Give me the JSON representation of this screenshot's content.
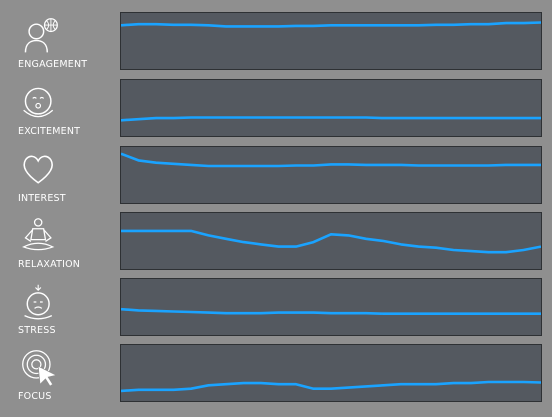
{
  "colors": {
    "background": "#8f8f8f",
    "chart_bg": "#545960",
    "line": "#1aa3ff",
    "icon": "#ffffff"
  },
  "metrics": [
    {
      "label": "ENGAGEMENT",
      "icon": "engagement-icon",
      "values": [
        0.78,
        0.8,
        0.8,
        0.79,
        0.79,
        0.78,
        0.76,
        0.76,
        0.76,
        0.76,
        0.77,
        0.77,
        0.78,
        0.78,
        0.78,
        0.78,
        0.78,
        0.78,
        0.79,
        0.79,
        0.8,
        0.8,
        0.82,
        0.82,
        0.83
      ]
    },
    {
      "label": "EXCITEMENT",
      "icon": "excitement-icon",
      "values": [
        0.28,
        0.3,
        0.32,
        0.32,
        0.33,
        0.33,
        0.33,
        0.33,
        0.33,
        0.33,
        0.33,
        0.33,
        0.33,
        0.33,
        0.33,
        0.32,
        0.32,
        0.32,
        0.32,
        0.32,
        0.32,
        0.32,
        0.32,
        0.32,
        0.32
      ]
    },
    {
      "label": "INTEREST",
      "icon": "interest-icon",
      "values": [
        0.88,
        0.76,
        0.72,
        0.7,
        0.68,
        0.66,
        0.66,
        0.66,
        0.66,
        0.66,
        0.67,
        0.67,
        0.69,
        0.69,
        0.68,
        0.68,
        0.68,
        0.67,
        0.67,
        0.67,
        0.67,
        0.67,
        0.68,
        0.68,
        0.68
      ]
    },
    {
      "label": "RELAXATION",
      "icon": "relaxation-icon",
      "values": [
        0.68,
        0.68,
        0.68,
        0.68,
        0.68,
        0.6,
        0.54,
        0.48,
        0.44,
        0.4,
        0.4,
        0.48,
        0.62,
        0.6,
        0.54,
        0.5,
        0.44,
        0.4,
        0.38,
        0.34,
        0.32,
        0.3,
        0.3,
        0.34,
        0.4
      ]
    },
    {
      "label": "STRESS",
      "icon": "stress-icon",
      "values": [
        0.46,
        0.44,
        0.43,
        0.42,
        0.41,
        0.4,
        0.39,
        0.39,
        0.39,
        0.4,
        0.4,
        0.4,
        0.39,
        0.39,
        0.39,
        0.38,
        0.38,
        0.38,
        0.38,
        0.38,
        0.38,
        0.38,
        0.38,
        0.38,
        0.38
      ]
    },
    {
      "label": "FOCUS",
      "icon": "focus-icon",
      "values": [
        0.18,
        0.2,
        0.2,
        0.2,
        0.22,
        0.28,
        0.3,
        0.32,
        0.32,
        0.3,
        0.3,
        0.22,
        0.22,
        0.24,
        0.26,
        0.28,
        0.3,
        0.3,
        0.3,
        0.32,
        0.32,
        0.34,
        0.34,
        0.34,
        0.33
      ]
    }
  ]
}
